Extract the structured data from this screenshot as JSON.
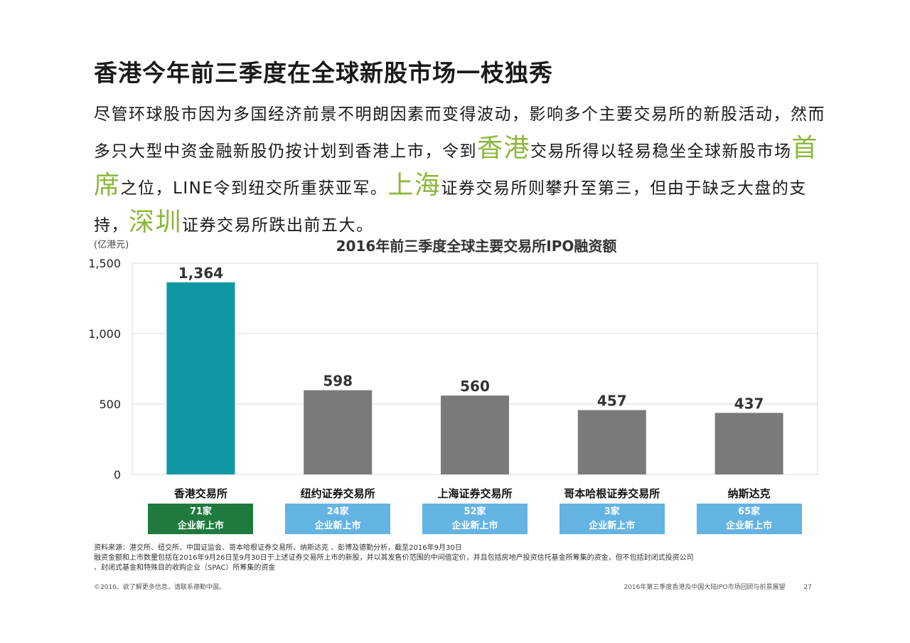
{
  "header": {
    "title": "香港今年前三季度在全球新股市场一枝独秀",
    "paragraph": [
      {
        "text": "尽管环球股市因为多国经济前景不明朗因素而变得波动，影响多个主要交易所的新股",
        "hl": false
      },
      {
        "text": "活动，然而多只大型中资金融新股仍按计划到香港上市，令到",
        "hl": false
      },
      {
        "text": "香港",
        "hl": true
      },
      {
        "text": "交易所得以轻易稳坐全球新股市场",
        "hl": false
      },
      {
        "text": "首席",
        "hl": true
      },
      {
        "text": "之位，LINE令到纽交所重获亚军。",
        "hl": false
      },
      {
        "text": "上海",
        "hl": true
      },
      {
        "text": "证券交易所则攀升至第三，但由于缺乏大盘的支持，",
        "hl": false
      },
      {
        "text": "深圳",
        "hl": true
      },
      {
        "text": "证券交易所跌出前五大。",
        "hl": false
      }
    ]
  },
  "colors": {
    "highlight": "#8cb73c",
    "bar_primary": "#0f98a4",
    "bar_other": "#7a7a7a",
    "badge_primary": "#1e7a3e",
    "badge_other": "#63b3e3",
    "grid": "#d9d9d9"
  },
  "chart_data": {
    "type": "bar",
    "title": "2016年前三季度全球主要交易所IPO融资额",
    "unit_label": "(亿港元)",
    "categories": [
      "香港交易所",
      "纽约证券交易所",
      "上海证券交易所",
      "哥本哈根证券交易所",
      "纳斯达克"
    ],
    "values": [
      1364,
      598,
      560,
      457,
      437
    ],
    "value_labels": [
      "1,364",
      "598",
      "560",
      "457",
      "437"
    ],
    "ylim": [
      0,
      1500
    ],
    "yticks": [
      0,
      500,
      1000,
      1500
    ],
    "ytick_labels": [
      "0",
      "500",
      "1,000",
      "1,500"
    ],
    "grid": true,
    "legend": "none"
  },
  "badges": [
    {
      "count": "71家",
      "text": "企业新上市"
    },
    {
      "count": "24家",
      "text": "企业新上市"
    },
    {
      "count": "52家",
      "text": "企业新上市"
    },
    {
      "count": "3家",
      "text": "企业新上市"
    },
    {
      "count": "65家",
      "text": "企业新上市"
    }
  ],
  "source_lines": [
    "资料来源：港交所、纽交所、中国证监会、哥本哈根证券交易所、纳斯达克 、彭博及德勤分析，截至2016年9月30日",
    "融资金额和上市数量包括在2016年9月26日至9月30日于上述证券交易所上市的新股，并以其发售价范围的中间值定价，并且包括房地产投资信托基金所筹集的资金，但不包括封闭式投资公司",
    "、封闭式基金和特殊目的收购企业（SPAC）所筹集的资金"
  ],
  "footer": {
    "left": "©2016。欲了解更多信息，请联系德勤中国。",
    "right": "2016年第三季度香港及中国大陆IPO市场回顾与前景展望",
    "page": "27"
  }
}
